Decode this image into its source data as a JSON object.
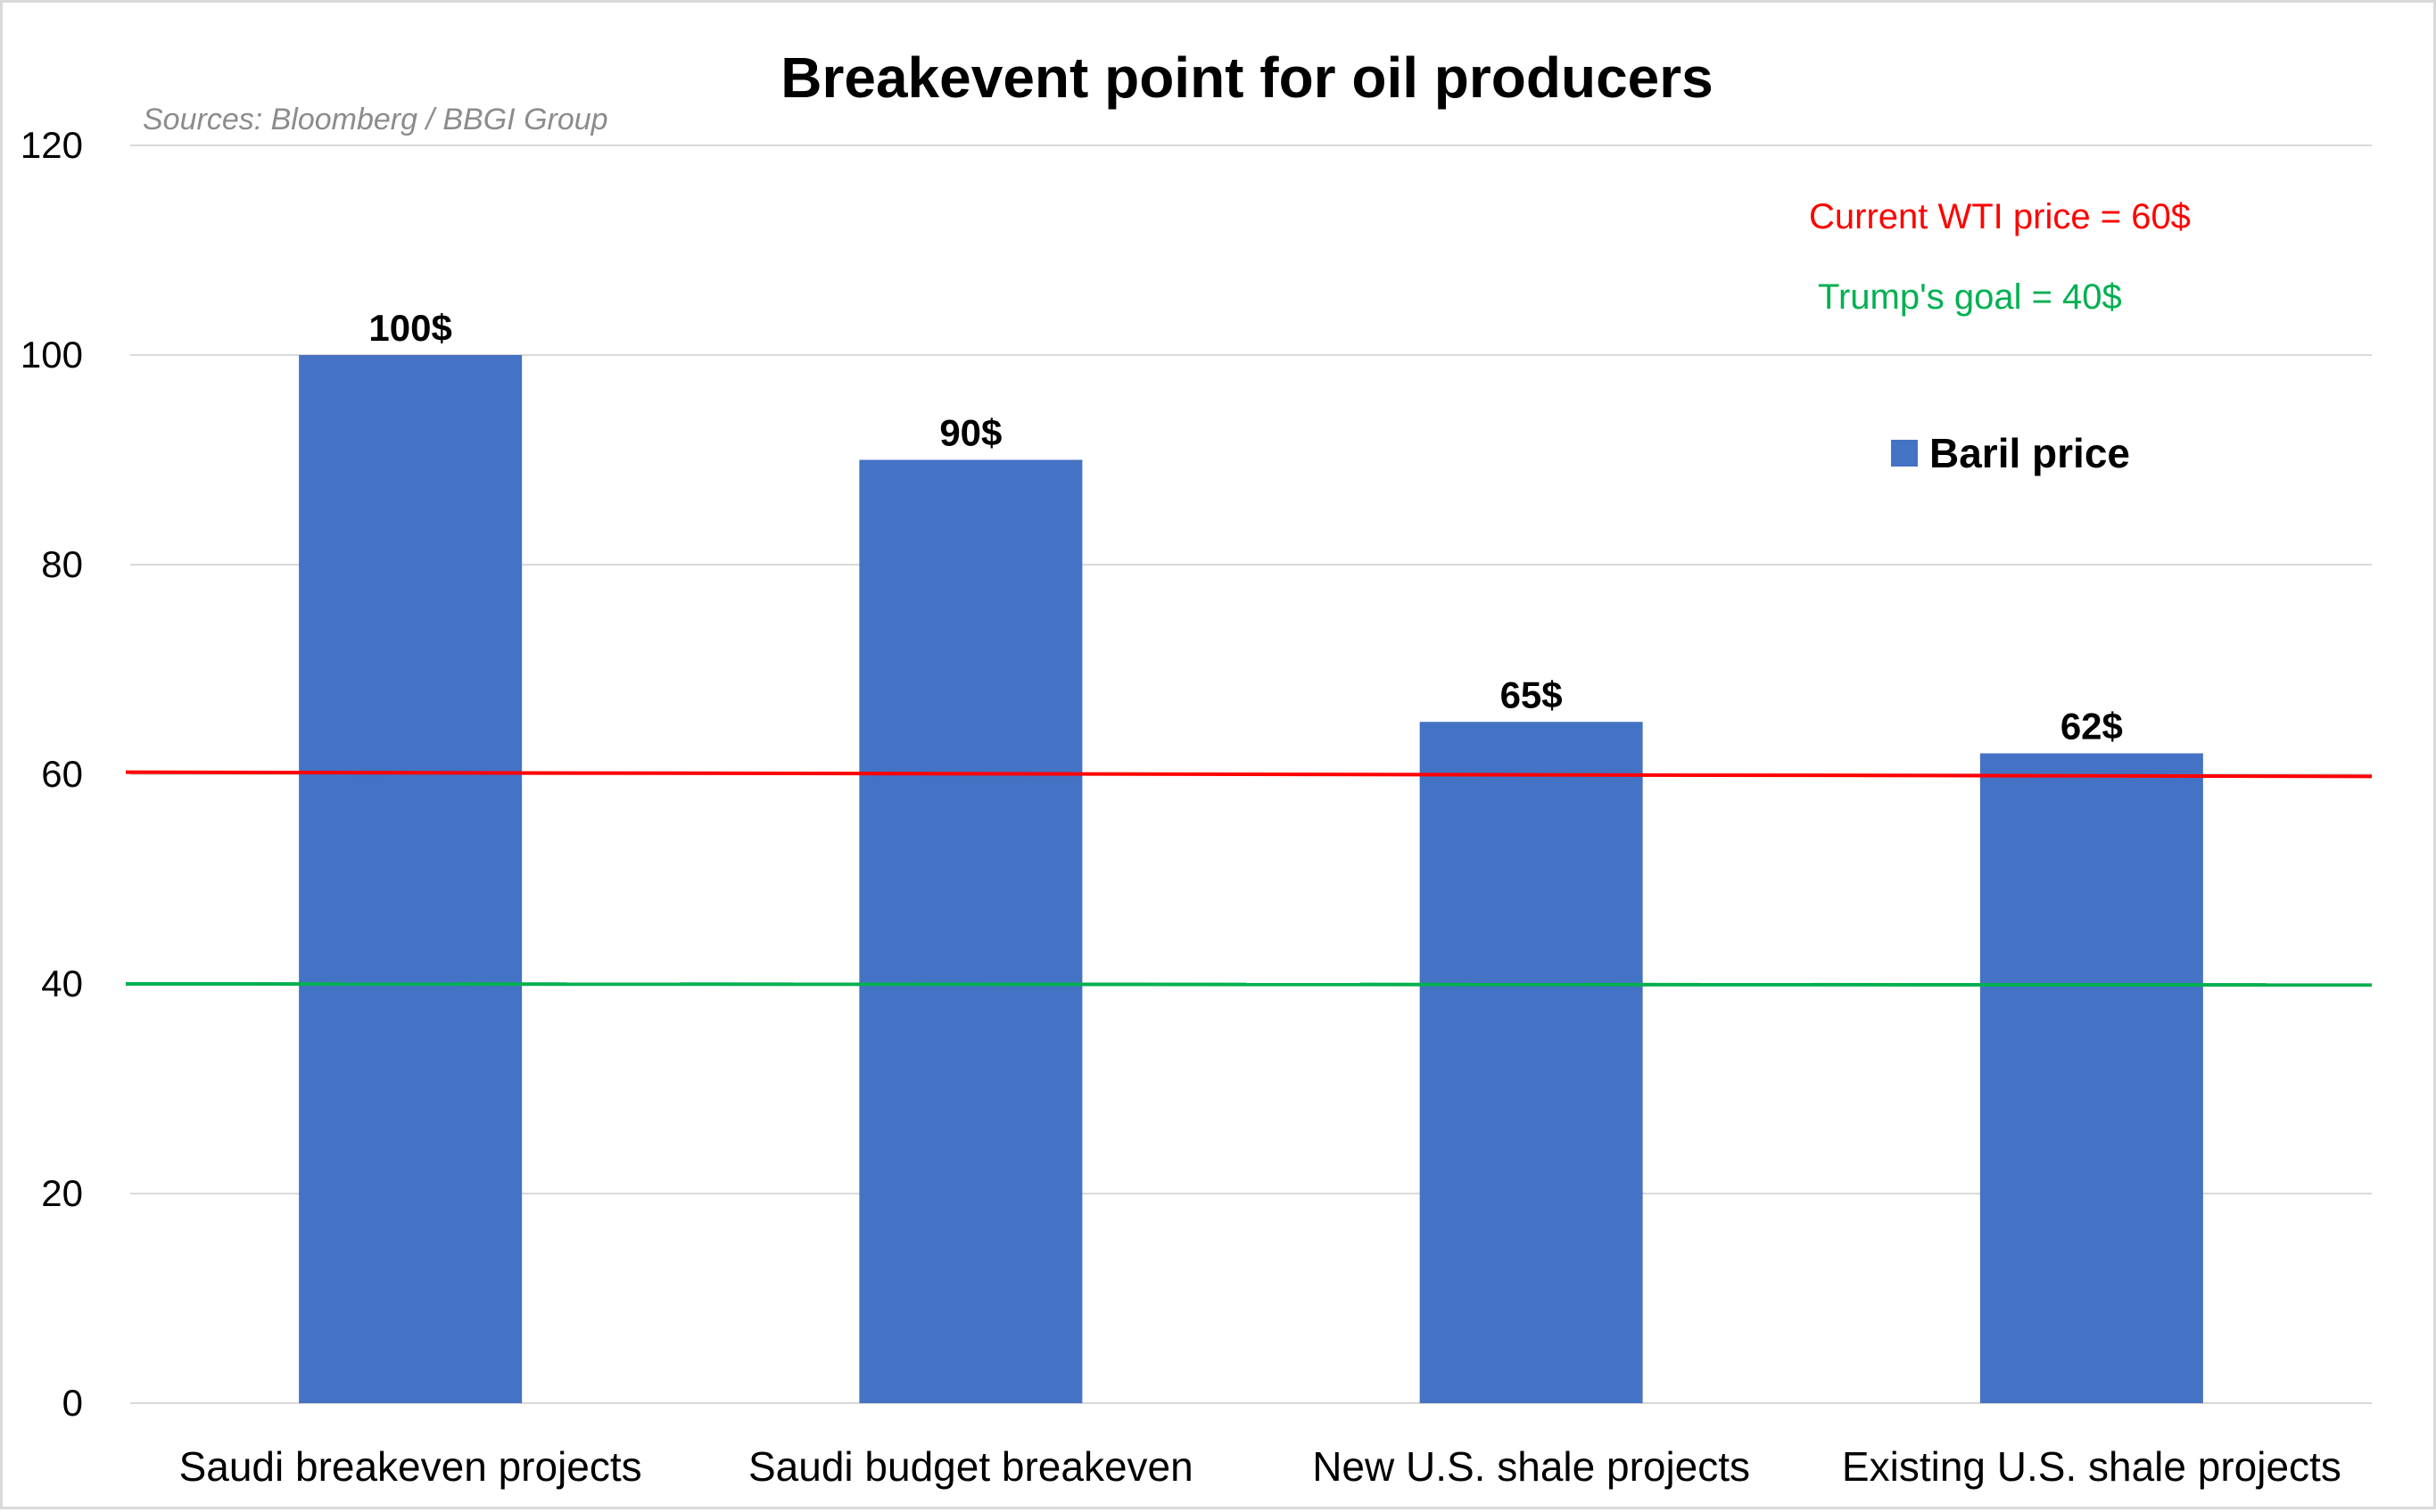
{
  "chart_data": {
    "type": "bar",
    "title": "Breakevent point for oil producers",
    "subtitle": "Sources: Bloomberg / BBGI Group",
    "categories": [
      "Saudi breakeven projects",
      "Saudi budget breakeven",
      "New U.S. shale projects",
      "Existing U.S. shale projects"
    ],
    "series": [
      {
        "name": "Baril price",
        "color": "#4472c4",
        "values": [
          100,
          90,
          65,
          62
        ],
        "data_labels": [
          "100$",
          "90$",
          "65$",
          "62$"
        ]
      }
    ],
    "ylim": [
      0,
      120
    ],
    "yticks": [
      0,
      20,
      40,
      60,
      80,
      100,
      120
    ],
    "ytick_labels": [
      "0",
      "20",
      "40",
      "60",
      "80",
      "100",
      "120"
    ],
    "grid": true,
    "gridline_color": "#d9d9d9",
    "legend_position": "right",
    "reference_lines": [
      {
        "label": "Current WTI price = 60$",
        "y_start": 60.2,
        "y_end": 59.8,
        "color": "#ff0000"
      },
      {
        "label": "Trump's goal = 40$",
        "y_start": 40,
        "y_end": 39.9,
        "color": "#00b050"
      }
    ]
  }
}
